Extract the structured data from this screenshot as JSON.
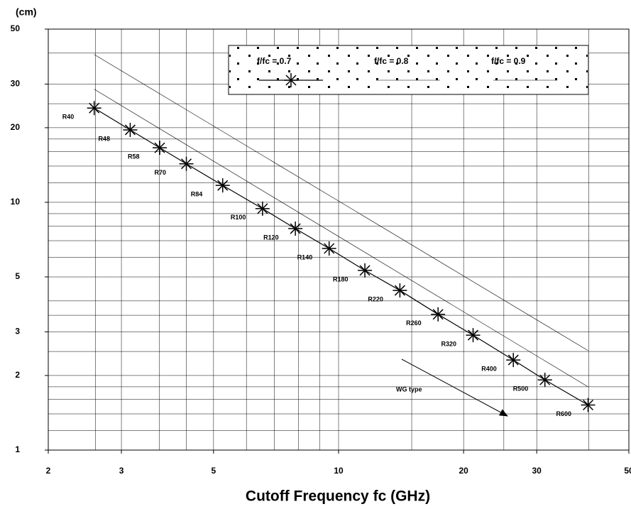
{
  "chart_data": {
    "type": "line",
    "x_label": "Cutoff Frequency fc (GHz)",
    "y_label": "(cm)",
    "xscale": "log",
    "yscale": "log",
    "grid": true,
    "xlim": [
      2,
      50
    ],
    "ylim": [
      1,
      50
    ],
    "xticks": [
      2,
      3,
      5,
      10,
      20,
      30,
      50
    ],
    "yticks": [
      1,
      2,
      3,
      5,
      10,
      20,
      30,
      50
    ],
    "xgrid": [
      2.6,
      3,
      3.7,
      4.3,
      5,
      6,
      7,
      8,
      9,
      10,
      15,
      20,
      25,
      30,
      40,
      50
    ],
    "ygrid": [
      1,
      1.2,
      1.4,
      1.6,
      1.8,
      2,
      2.5,
      3,
      3.5,
      4,
      5,
      6,
      7,
      8,
      9,
      10,
      12,
      14,
      16,
      18,
      20,
      25,
      30,
      40,
      50
    ],
    "series": [
      {
        "name": "f/fc = 0.7",
        "color": "#000000",
        "marker": "star",
        "x": [
          2.58,
          3.15,
          3.71,
          4.3,
          5.26,
          6.56,
          7.87,
          9.49,
          11.57,
          14.05,
          17.36,
          21.08,
          26.35,
          31.39,
          39.88
        ],
        "values": [
          24.0,
          19.6,
          16.6,
          14.3,
          11.7,
          9.43,
          7.83,
          6.51,
          5.31,
          4.41,
          3.53,
          2.91,
          2.31,
          1.92,
          1.52
        ]
      },
      {
        "name": "f/fc = 0.8",
        "color": "#000000",
        "x": [
          2.58,
          39.88
        ],
        "values": [
          28.6,
          1.8
        ]
      },
      {
        "name": "f/fc = 0.9",
        "color": "#000000",
        "x": [
          2.58,
          39.88
        ],
        "values": [
          39.5,
          2.52
        ]
      }
    ],
    "point_labels": [
      "R40",
      "R48",
      "R58",
      "R70",
      "R84",
      "R100",
      "R120",
      "R140",
      "R180",
      "R220",
      "R260",
      "R320",
      "R400",
      "R500",
      "R600"
    ],
    "annotation": "WG type"
  }
}
